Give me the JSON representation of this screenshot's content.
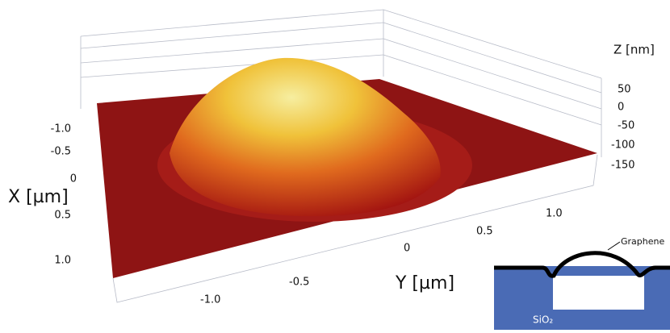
{
  "axes": {
    "x": {
      "label": "X [µm]",
      "ticks": [
        "-1.0",
        "-0.5",
        "0",
        "0.5",
        "1.0"
      ]
    },
    "y": {
      "label": "Y [µm]",
      "ticks": [
        "-1.0",
        "-0.5",
        "0",
        "0.5",
        "1.0"
      ]
    },
    "z": {
      "label": "Z [nm]",
      "ticks": [
        "50",
        "0",
        "-50",
        "-100",
        "-150"
      ]
    }
  },
  "inset": {
    "film_label": "Graphene",
    "substrate_label": "SiO₂"
  }
}
